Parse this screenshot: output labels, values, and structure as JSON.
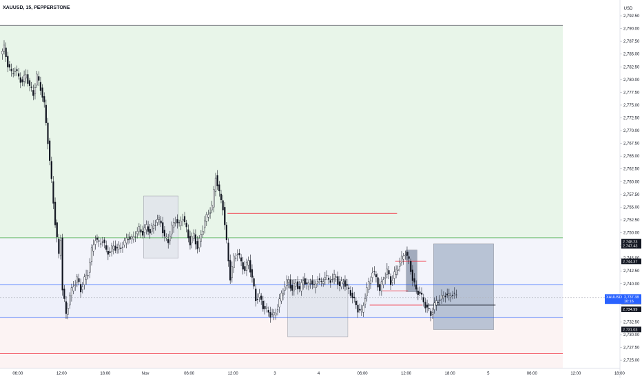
{
  "symbol_title": "XAUUSD, 15, PEPPERSTONE",
  "currency": "USD",
  "price_badge": {
    "symbol": "XAUUSD",
    "price": "2,737.38",
    "countdown": "10:16"
  },
  "chart_data": {
    "type": "candlestick",
    "title": "XAUUSD, 15, PEPPERSTONE",
    "ylabel": "USD",
    "ylim": [
      2723.4,
      2795.6
    ],
    "y_ticks": [
      2725.0,
      2727.5,
      2730.0,
      2732.5,
      2735.0,
      2737.5,
      2740.0,
      2742.5,
      2745.0,
      2747.5,
      2750.0,
      2752.5,
      2755.0,
      2757.5,
      2760.0,
      2762.5,
      2765.0,
      2767.5,
      2770.0,
      2772.5,
      2775.0,
      2777.5,
      2780.0,
      2782.5,
      2785.0,
      2787.5,
      2790.0,
      2792.5
    ],
    "y_tick_labels": [
      "2,725.00",
      "2,727.50",
      "2,730.00",
      "2,732.50",
      "2,735.00",
      "2,737.50",
      "2,740.00",
      "2,742.50",
      "2,745.00",
      "2,747.50",
      "2,750.00",
      "2,752.50",
      "2,755.00",
      "2,757.50",
      "2,760.00",
      "2,762.50",
      "2,765.00",
      "2,767.50",
      "2,770.00",
      "2,772.50",
      "2,775.00",
      "2,777.50",
      "2,780.00",
      "2,782.50",
      "2,785.00",
      "2,787.50",
      "2,790.00",
      "2,792.50"
    ],
    "x_ticks": [
      {
        "label": "06:00",
        "bar": 9
      },
      {
        "label": "12:00",
        "bar": 33
      },
      {
        "label": "18:00",
        "bar": 57
      },
      {
        "label": "Nov",
        "bar": 79
      },
      {
        "label": "06:00",
        "bar": 103
      },
      {
        "label": "12:00",
        "bar": 127
      },
      {
        "label": "3",
        "bar": 150
      },
      {
        "label": "4",
        "bar": 174
      },
      {
        "label": "06:00",
        "bar": 198
      },
      {
        "label": "12:00",
        "bar": 222
      },
      {
        "label": "18:00",
        "bar": 246
      },
      {
        "label": "5",
        "bar": 267
      },
      {
        "label": "06:00",
        "bar": 291
      },
      {
        "label": "12:00",
        "bar": 315
      },
      {
        "label": "18:00",
        "bar": 339
      }
    ],
    "price_points": [
      [
        0,
        2785.0
      ],
      [
        2,
        2786.2
      ],
      [
        4,
        2783.0
      ],
      [
        6,
        2781.2
      ],
      [
        8,
        2782.0
      ],
      [
        10,
        2780.4
      ],
      [
        12,
        2779.6
      ],
      [
        14,
        2781.0
      ],
      [
        16,
        2778.6
      ],
      [
        18,
        2777.2
      ],
      [
        20,
        2780.6
      ],
      [
        22,
        2778.4
      ],
      [
        24,
        2775.0
      ],
      [
        26,
        2768.0
      ],
      [
        28,
        2760.0
      ],
      [
        30,
        2752.0
      ],
      [
        32,
        2745.5
      ],
      [
        33,
        2749.0
      ],
      [
        34,
        2739.0
      ],
      [
        36,
        2734.0
      ],
      [
        38,
        2737.6
      ],
      [
        40,
        2739.6
      ],
      [
        42,
        2741.0
      ],
      [
        44,
        2738.8
      ],
      [
        46,
        2740.8
      ],
      [
        48,
        2742.2
      ],
      [
        50,
        2746.4
      ],
      [
        52,
        2749.0
      ],
      [
        54,
        2747.8
      ],
      [
        56,
        2748.6
      ],
      [
        58,
        2746.4
      ],
      [
        60,
        2746.2
      ],
      [
        62,
        2747.4
      ],
      [
        64,
        2746.8
      ],
      [
        66,
        2747.2
      ],
      [
        68,
        2748.0
      ],
      [
        70,
        2749.2
      ],
      [
        72,
        2748.6
      ],
      [
        74,
        2749.8
      ],
      [
        76,
        2750.6
      ],
      [
        78,
        2750.0
      ],
      [
        80,
        2751.2
      ],
      [
        82,
        2750.2
      ],
      [
        84,
        2751.4
      ],
      [
        86,
        2752.6
      ],
      [
        88,
        2752.0
      ],
      [
        90,
        2749.0
      ],
      [
        92,
        2748.4
      ],
      [
        94,
        2751.0
      ],
      [
        96,
        2752.6
      ],
      [
        98,
        2751.4
      ],
      [
        100,
        2753.2
      ],
      [
        102,
        2750.6
      ],
      [
        104,
        2748.0
      ],
      [
        106,
        2749.6
      ],
      [
        108,
        2747.0
      ],
      [
        110,
        2749.6
      ],
      [
        112,
        2752.2
      ],
      [
        114,
        2753.8
      ],
      [
        116,
        2755.0
      ],
      [
        118,
        2761.2
      ],
      [
        120,
        2757.6
      ],
      [
        122,
        2755.0
      ],
      [
        124,
        2748.0
      ],
      [
        126,
        2741.2
      ],
      [
        128,
        2745.0
      ],
      [
        130,
        2746.0
      ],
      [
        132,
        2744.2
      ],
      [
        134,
        2742.6
      ],
      [
        136,
        2744.6
      ],
      [
        138,
        2741.0
      ],
      [
        140,
        2737.0
      ],
      [
        142,
        2737.6
      ],
      [
        144,
        2735.6
      ],
      [
        146,
        2734.8
      ],
      [
        148,
        2734.0
      ],
      [
        150,
        2733.8
      ],
      [
        152,
        2735.4
      ],
      [
        154,
        2737.8
      ],
      [
        156,
        2739.6
      ],
      [
        158,
        2740.8
      ],
      [
        160,
        2738.6
      ],
      [
        162,
        2740.4
      ],
      [
        164,
        2738.6
      ],
      [
        166,
        2741.0
      ],
      [
        168,
        2739.4
      ],
      [
        170,
        2740.6
      ],
      [
        172,
        2739.2
      ],
      [
        174,
        2741.0
      ],
      [
        176,
        2740.0
      ],
      [
        178,
        2741.6
      ],
      [
        180,
        2740.6
      ],
      [
        182,
        2741.0
      ],
      [
        184,
        2741.4
      ],
      [
        186,
        2739.4
      ],
      [
        188,
        2740.6
      ],
      [
        190,
        2739.2
      ],
      [
        192,
        2738.2
      ],
      [
        194,
        2736.6
      ],
      [
        196,
        2735.0
      ],
      [
        198,
        2734.4
      ],
      [
        200,
        2737.6
      ],
      [
        202,
        2740.0
      ],
      [
        204,
        2742.4
      ],
      [
        206,
        2741.2
      ],
      [
        208,
        2738.6
      ],
      [
        210,
        2741.0
      ],
      [
        212,
        2742.6
      ],
      [
        214,
        2740.2
      ],
      [
        216,
        2741.8
      ],
      [
        218,
        2743.4
      ],
      [
        220,
        2744.8
      ],
      [
        222,
        2746.2
      ],
      [
        224,
        2744.4
      ],
      [
        226,
        2741.0
      ],
      [
        228,
        2738.6
      ],
      [
        230,
        2738.2
      ],
      [
        232,
        2736.4
      ],
      [
        234,
        2735.2
      ],
      [
        236,
        2734.0
      ],
      [
        238,
        2735.8
      ],
      [
        240,
        2736.8
      ],
      [
        242,
        2737.2
      ],
      [
        244,
        2738.0
      ],
      [
        246,
        2737.4
      ],
      [
        248,
        2738.2
      ],
      [
        250,
        2737.4
      ]
    ],
    "horizontal_levels": [
      {
        "price": 2790.6,
        "color": "#131722"
      },
      {
        "price": 2749.0,
        "color": "#4caf50"
      },
      {
        "price": 2739.8,
        "color": "#2962ff"
      },
      {
        "price": 2737.3,
        "color": "#b2b5be"
      },
      {
        "price": 2733.4,
        "color": "#2962ff"
      },
      {
        "price": 2726.3,
        "color": "#f23645"
      }
    ],
    "zones": [
      {
        "from": 2790.6,
        "to": 2749.0,
        "color": "#e8f5e9"
      },
      {
        "from": 2749.0,
        "to": 2739.8,
        "color": "#f3f4fb"
      },
      {
        "from": 2739.8,
        "to": 2733.4,
        "color": "#eef0fa"
      },
      {
        "from": 2733.4,
        "to": 2723.4,
        "color": "#fcf3f3"
      }
    ],
    "segments": [
      {
        "bar_from": 124,
        "bar_to": 217,
        "price": 2753.8,
        "color": "#f23645"
      },
      {
        "bar_from": 216,
        "bar_to": 233,
        "price": 2744.4,
        "color": "#f23645"
      },
      {
        "bar_from": 209,
        "bar_to": 223,
        "price": 2738.6,
        "color": "#f23645"
      },
      {
        "bar_from": 202,
        "bar_to": 231,
        "price": 2735.8,
        "color": "#f23645"
      },
      {
        "bar_from": 233,
        "bar_to": 271,
        "price": 2735.8,
        "color": "#131722"
      }
    ],
    "boxes": [
      {
        "bar_from": 78,
        "bar_to": 97,
        "top": 2757.2,
        "bottom": 2745.0,
        "fill": "#e0e3eb"
      },
      {
        "bar_from": 157,
        "bar_to": 190,
        "top": 2740.8,
        "bottom": 2729.6,
        "fill": "#e0e3eb"
      },
      {
        "bar_from": 222,
        "bar_to": 228,
        "top": 2746.6,
        "bottom": 2738.4,
        "fill": "#8d99ae"
      },
      {
        "bar_from": 237,
        "bar_to": 270,
        "top": 2747.8,
        "bottom": 2731.0,
        "fill": "#a9b6cc"
      }
    ],
    "right_axis_labels": [
      {
        "text": "2,748.23",
        "price": 2748.23,
        "color": "#131722"
      },
      {
        "text": "2,747.43",
        "price": 2747.43,
        "color": "#131722"
      },
      {
        "text": "2,744.37",
        "price": 2744.37,
        "color": "#131722"
      },
      {
        "text": "2,736.51",
        "price": 2736.51,
        "color": "#131722"
      },
      {
        "text": "2,734.99",
        "price": 2734.99,
        "color": "#131722"
      },
      {
        "text": "2,731.03",
        "price": 2731.03,
        "color": "#131722"
      }
    ],
    "total_bars": 340,
    "grid": false
  }
}
